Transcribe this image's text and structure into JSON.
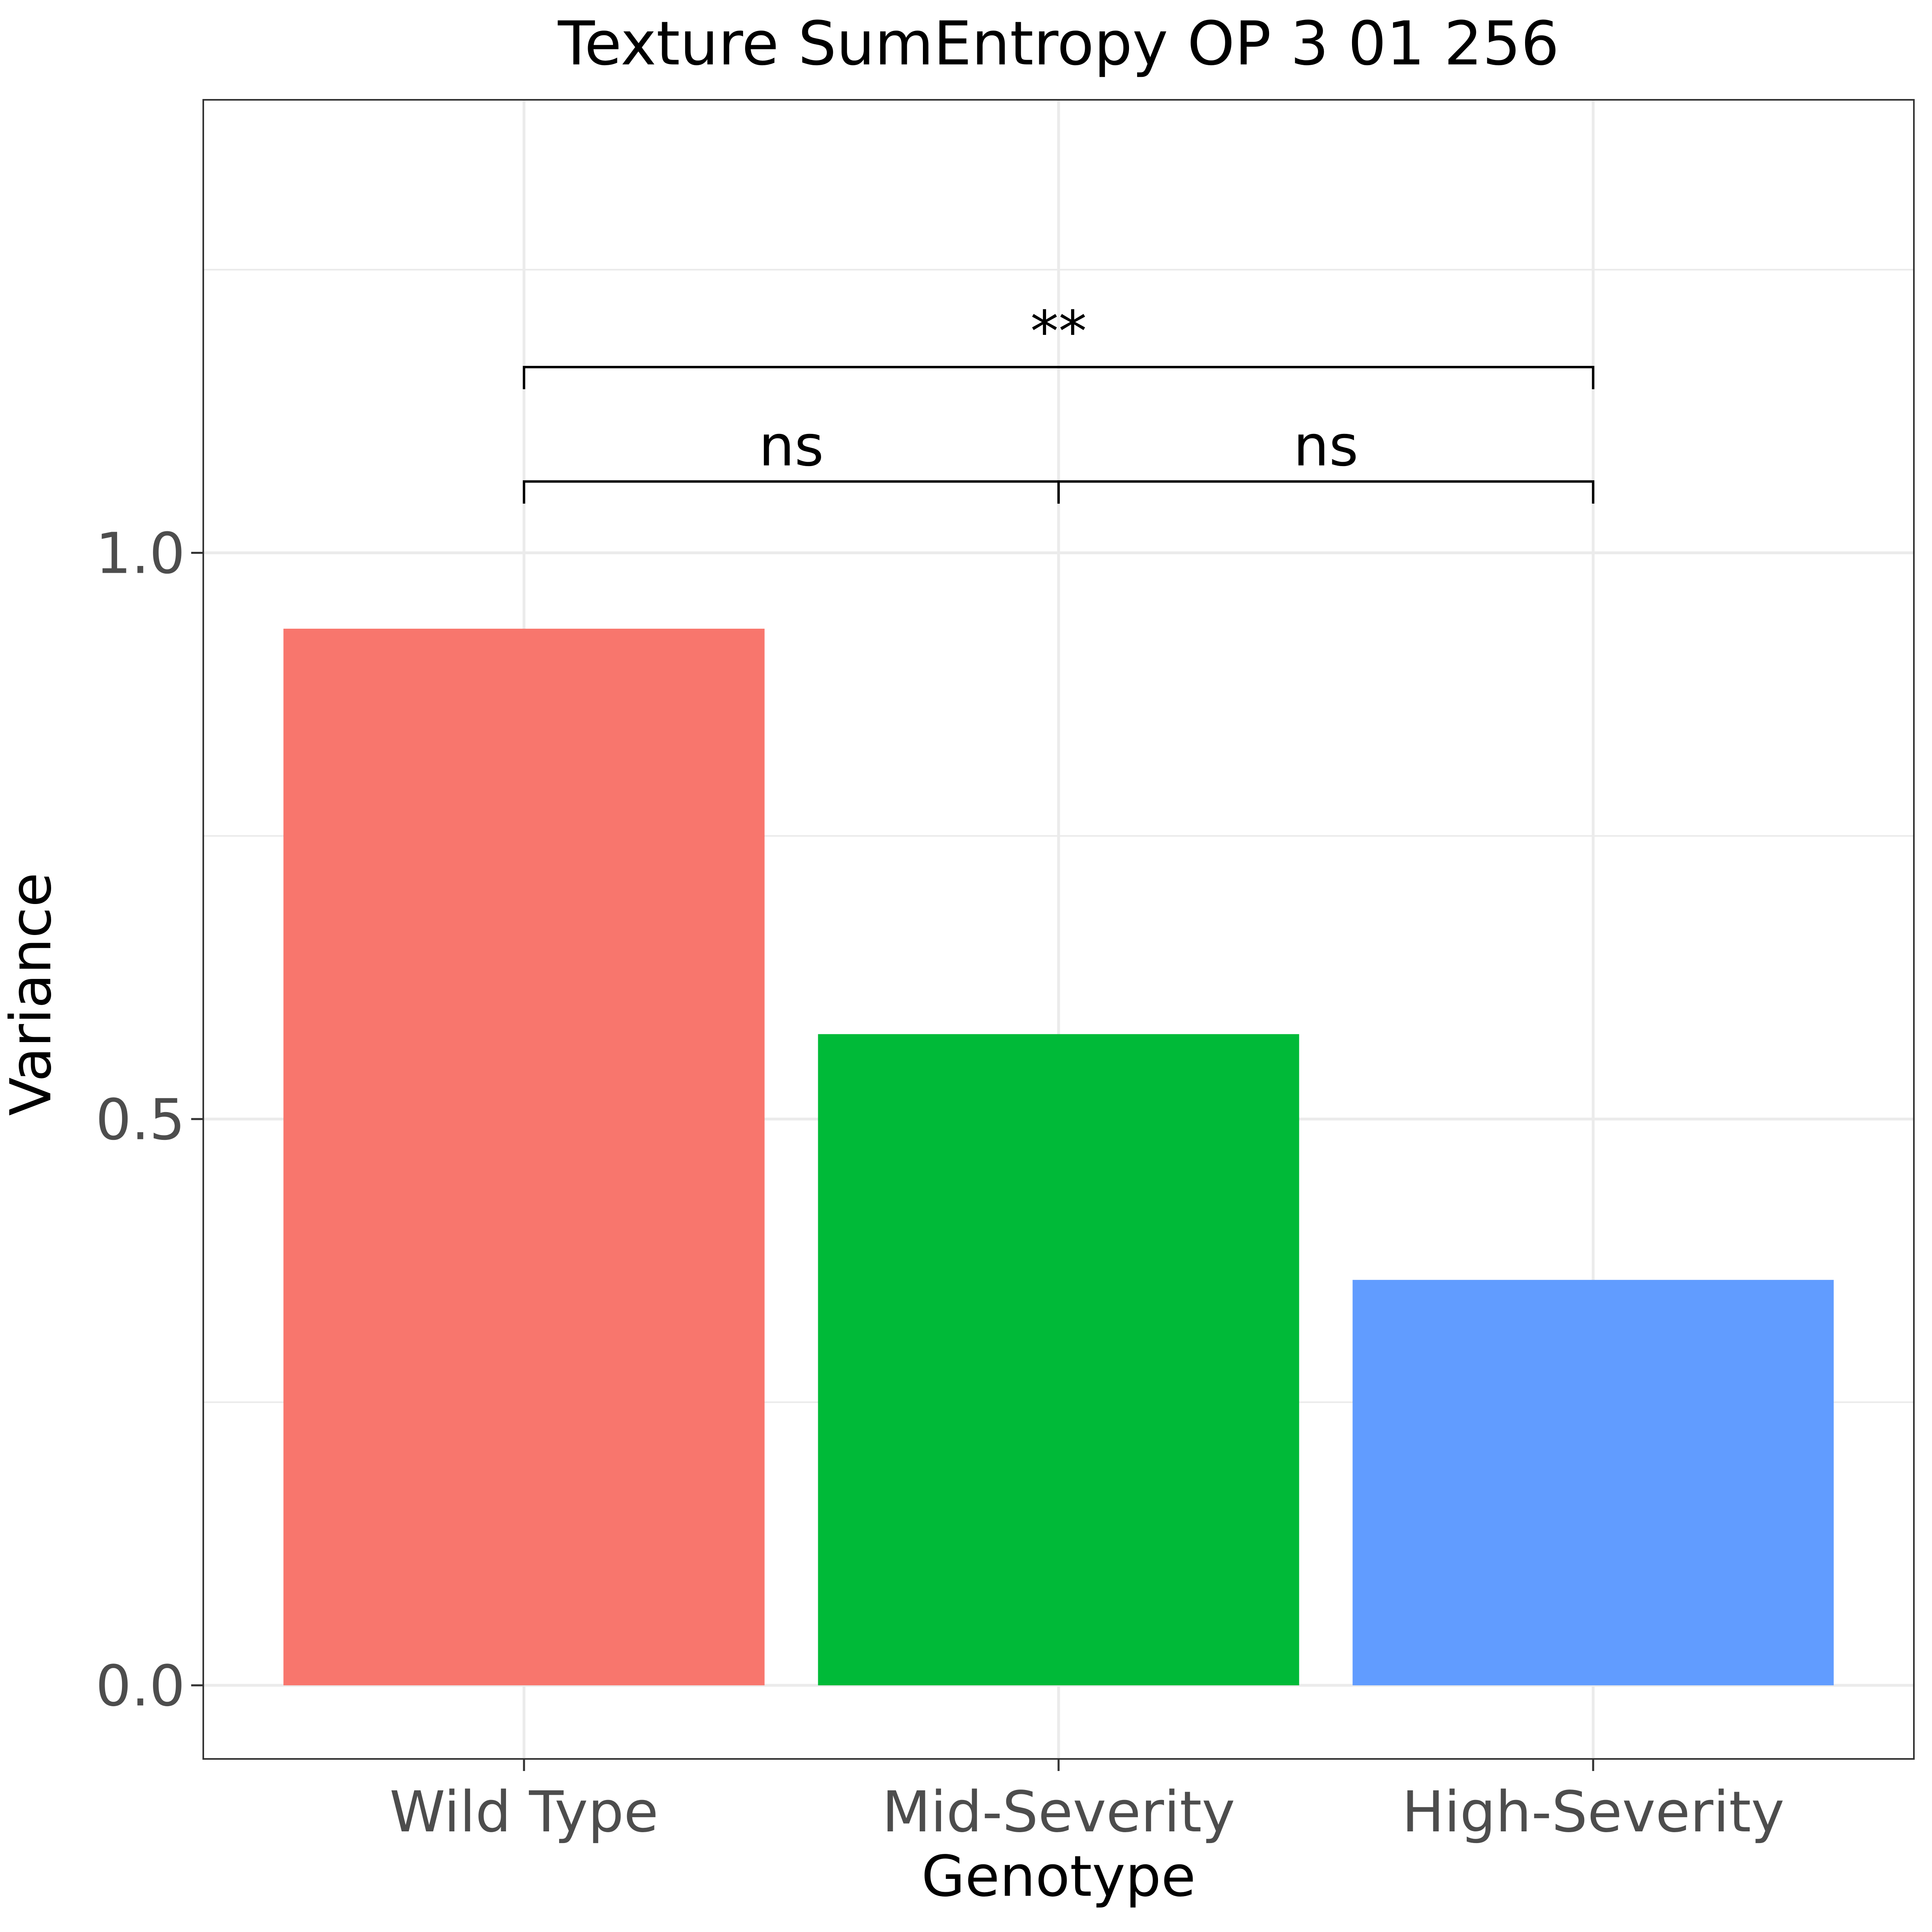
{
  "chart_data": {
    "type": "bar",
    "title": "Texture SumEntropy OP 3 01 256",
    "xlabel": "Genotype",
    "ylabel": "Variance",
    "categories": [
      "Wild Type",
      "Mid-Severity",
      "High-Severity"
    ],
    "values": [
      0.933,
      0.575,
      0.358
    ],
    "colors": [
      "#F8766D",
      "#00BA38",
      "#619CFF"
    ],
    "ylim": [
      -0.065,
      1.4
    ],
    "yticks": [
      0.0,
      0.5,
      1.0
    ],
    "ytick_labels": [
      "0.0",
      "0.5",
      "1.0"
    ],
    "grid": true,
    "legend": "none",
    "annotations": [
      {
        "from": 0,
        "to": 1,
        "y": 1.063,
        "label": "ns"
      },
      {
        "from": 1,
        "to": 2,
        "y": 1.063,
        "label": "ns"
      },
      {
        "from": 0,
        "to": 2,
        "y": 1.164,
        "label": "**"
      }
    ]
  }
}
